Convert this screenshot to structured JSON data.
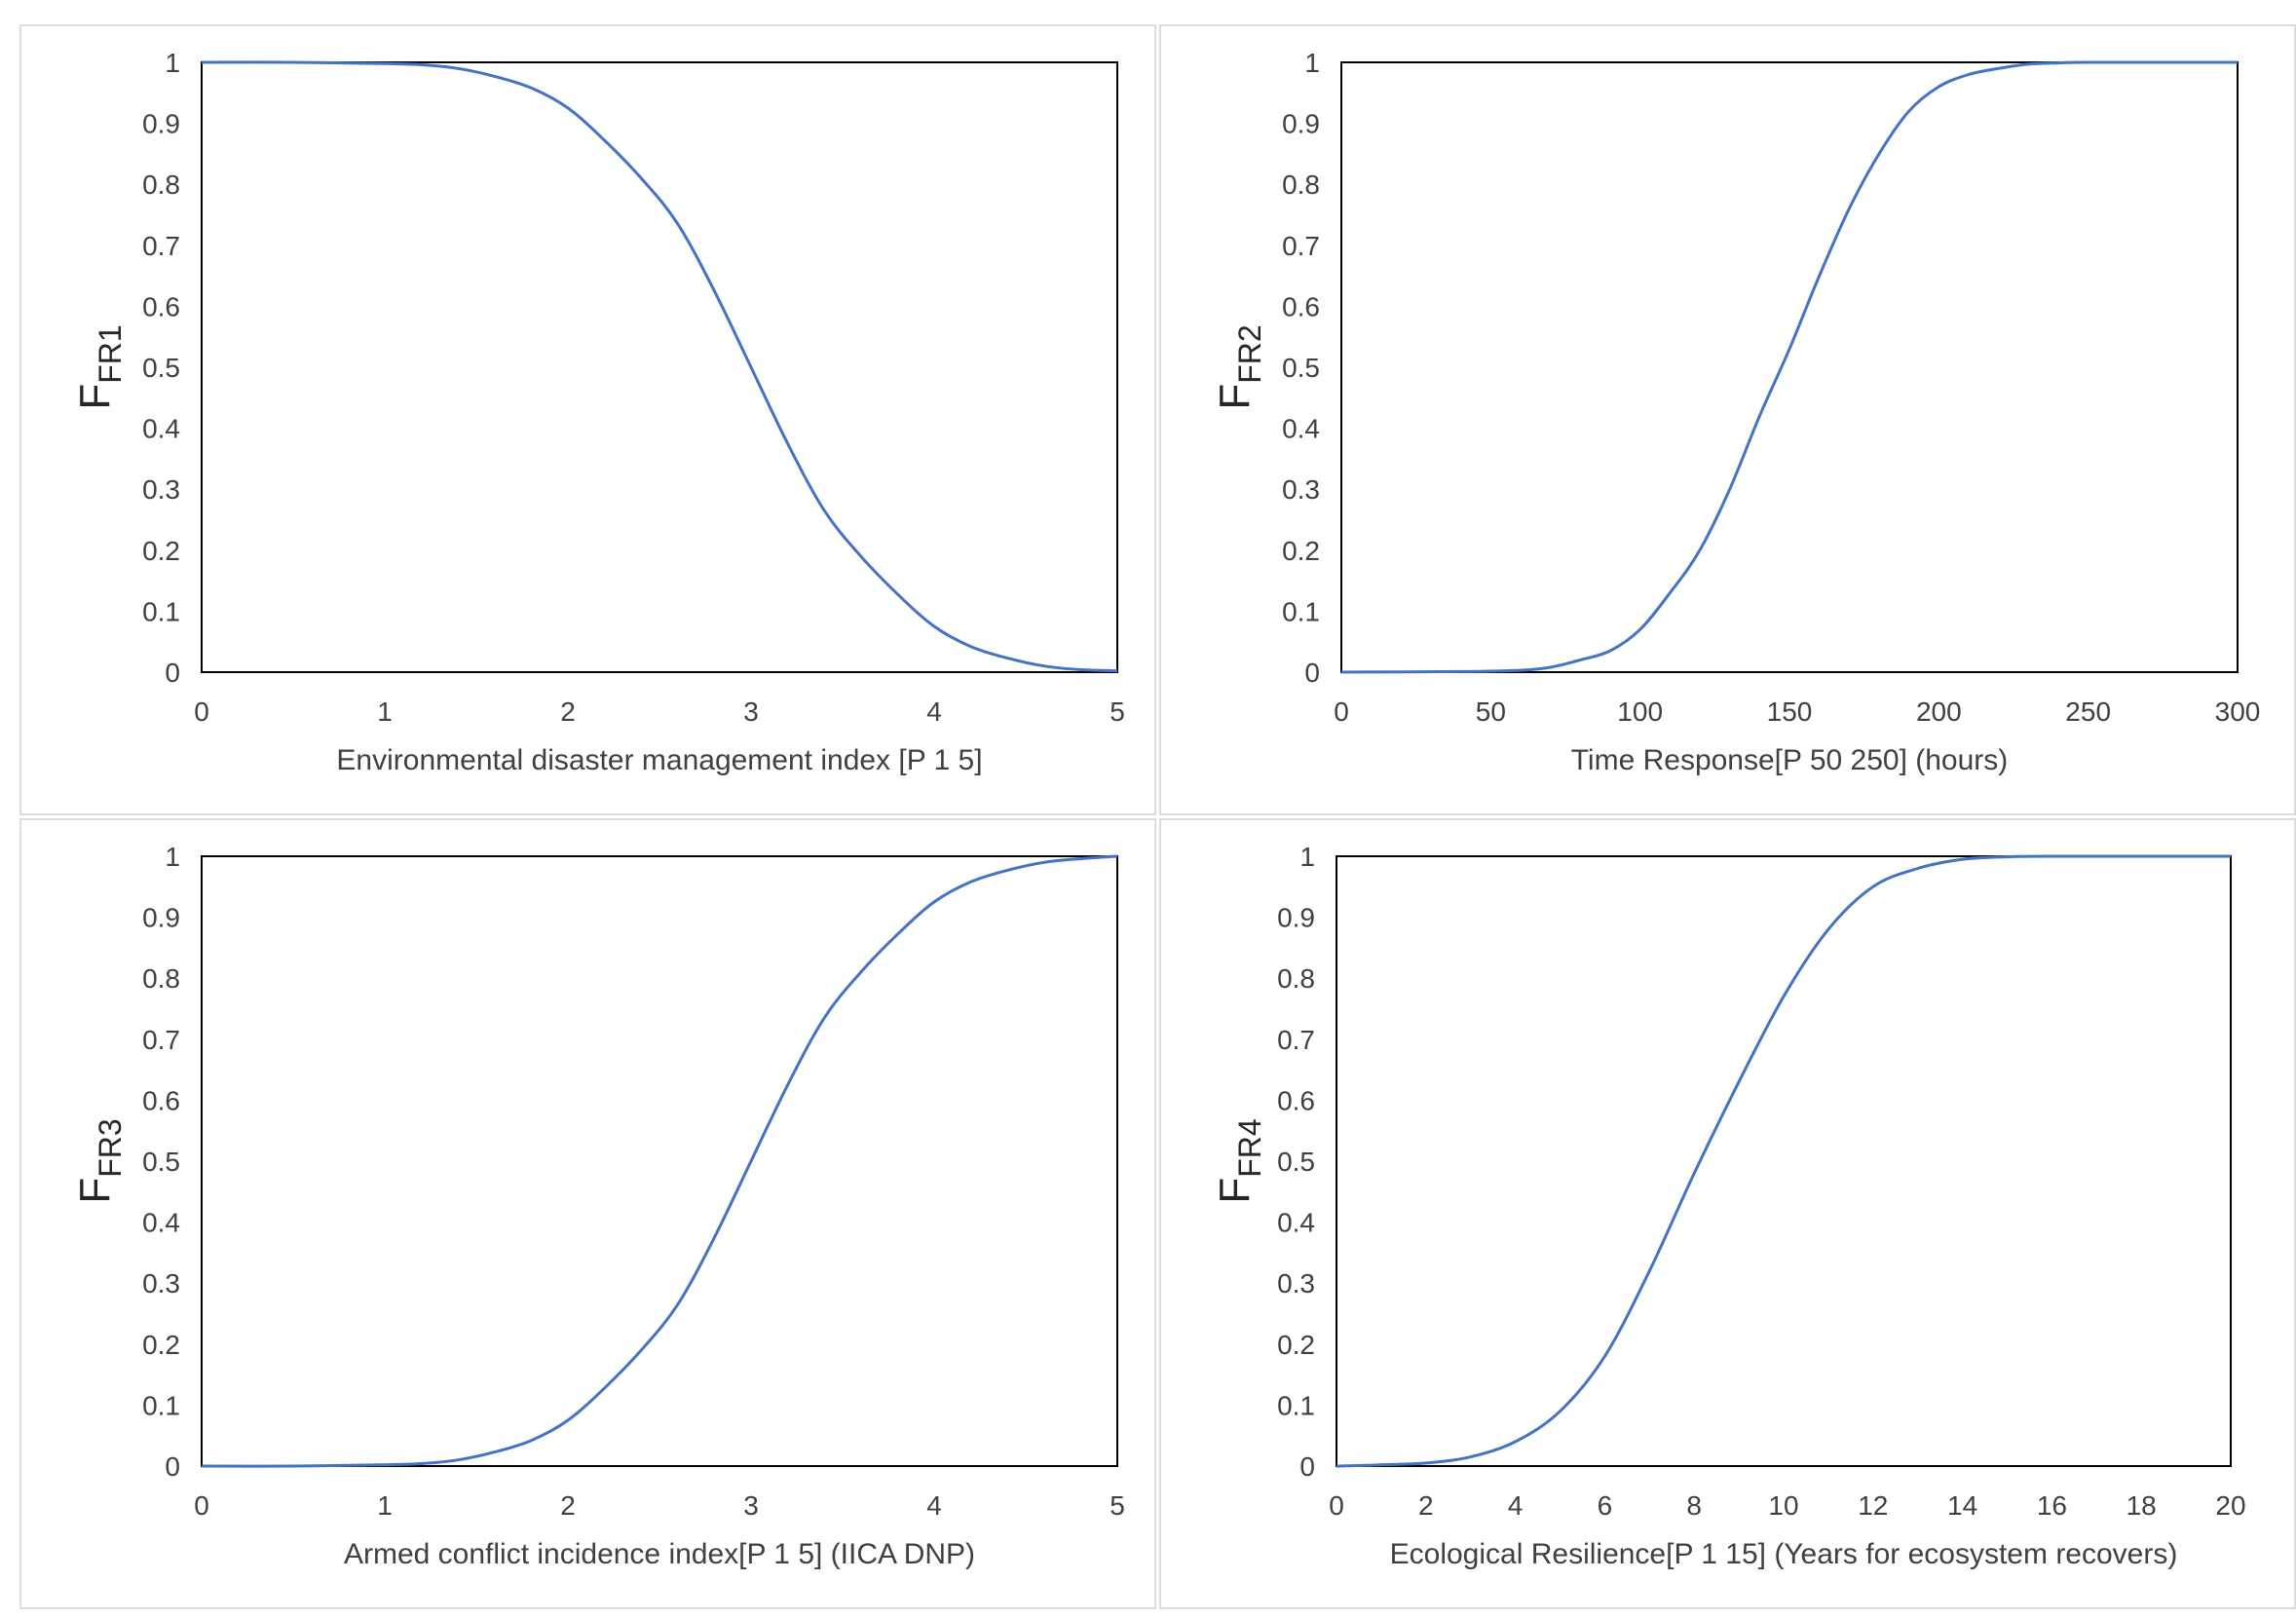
{
  "chart_data": [
    {
      "type": "line",
      "ylabel_main": "F",
      "ylabel_sub": "FR1",
      "xlabel": "Environmental disaster management index [P 1 5]",
      "xlim": [
        0,
        5
      ],
      "ylim": [
        0,
        1
      ],
      "xticks": [
        0,
        1,
        2,
        3,
        4,
        5
      ],
      "yticks": [
        0,
        0.1,
        0.2,
        0.3,
        0.4,
        0.5,
        0.6,
        0.7,
        0.8,
        0.9,
        1
      ],
      "ytick_labels": [
        "0",
        "0.1",
        "0.2",
        "0.3",
        "0.4",
        "0.5",
        "0.6",
        "0.7",
        "0.8",
        "0.9",
        "1"
      ],
      "series_color": "#4472c4",
      "x": [
        0,
        0.5,
        1.0,
        1.2,
        1.4,
        1.6,
        1.8,
        2.0,
        2.2,
        2.4,
        2.6,
        2.8,
        3.0,
        3.2,
        3.4,
        3.6,
        3.8,
        4.0,
        4.2,
        4.4,
        4.6,
        4.8,
        5.0
      ],
      "y": [
        1,
        1,
        0.998,
        0.996,
        0.99,
        0.977,
        0.958,
        0.925,
        0.872,
        0.81,
        0.735,
        0.625,
        0.5,
        0.375,
        0.265,
        0.19,
        0.128,
        0.075,
        0.042,
        0.023,
        0.01,
        0.004,
        0.002
      ]
    },
    {
      "type": "line",
      "ylabel_main": "F",
      "ylabel_sub": "FR2",
      "xlabel": "Time Response[P 50 250] (hours)",
      "xlim": [
        0,
        300
      ],
      "ylim": [
        0,
        1
      ],
      "xticks": [
        0,
        50,
        100,
        150,
        200,
        250,
        300
      ],
      "yticks": [
        0,
        0.1,
        0.2,
        0.3,
        0.4,
        0.5,
        0.6,
        0.7,
        0.8,
        0.9,
        1
      ],
      "ytick_labels": [
        "0",
        "0.1",
        "0.2",
        "0.3",
        "0.4",
        "0.5",
        "0.6",
        "0.7",
        "0.8",
        "0.9",
        "1"
      ],
      "series_color": "#4472c4",
      "x": [
        0,
        40,
        60,
        70,
        80,
        90,
        100,
        110,
        120,
        130,
        140,
        150,
        160,
        170,
        180,
        190,
        200,
        210,
        220,
        230,
        240,
        250,
        300
      ],
      "y": [
        0,
        0.001,
        0.003,
        0.008,
        0.02,
        0.035,
        0.07,
        0.13,
        0.2,
        0.3,
        0.42,
        0.53,
        0.65,
        0.76,
        0.85,
        0.92,
        0.96,
        0.98,
        0.99,
        0.997,
        0.999,
        1,
        1
      ]
    },
    {
      "type": "line",
      "ylabel_main": "F",
      "ylabel_sub": "FR3",
      "xlabel": "Armed conflict incidence index[P 1 5] (IICA DNP)",
      "xlim": [
        0,
        5
      ],
      "ylim": [
        0,
        1
      ],
      "xticks": [
        0,
        1,
        2,
        3,
        4,
        5
      ],
      "yticks": [
        0,
        0.1,
        0.2,
        0.3,
        0.4,
        0.5,
        0.6,
        0.7,
        0.8,
        0.9,
        1
      ],
      "ytick_labels": [
        "0",
        "0.1",
        "0.2",
        "0.3",
        "0.4",
        "0.5",
        "0.6",
        "0.7",
        "0.8",
        "0.9",
        "1"
      ],
      "series_color": "#4472c4",
      "x": [
        0,
        0.5,
        1.0,
        1.2,
        1.4,
        1.6,
        1.8,
        2.0,
        2.2,
        2.4,
        2.6,
        2.8,
        3.0,
        3.2,
        3.4,
        3.6,
        3.8,
        4.0,
        4.2,
        4.4,
        4.6,
        4.8,
        5.0
      ],
      "y": [
        0,
        0,
        0.002,
        0.004,
        0.01,
        0.023,
        0.042,
        0.075,
        0.128,
        0.19,
        0.265,
        0.375,
        0.5,
        0.625,
        0.735,
        0.81,
        0.872,
        0.925,
        0.958,
        0.977,
        0.99,
        0.996,
        1
      ]
    },
    {
      "type": "line",
      "ylabel_main": "F",
      "ylabel_sub": "FR4",
      "xlabel": "Ecological Resilience[P 1 15] (Years for ecosystem recovers)",
      "xlim": [
        0,
        20
      ],
      "ylim": [
        0,
        1
      ],
      "xticks": [
        0,
        2,
        4,
        6,
        8,
        10,
        12,
        14,
        16,
        18,
        20
      ],
      "yticks": [
        0,
        0.1,
        0.2,
        0.3,
        0.4,
        0.5,
        0.6,
        0.7,
        0.8,
        0.9,
        1
      ],
      "ytick_labels": [
        "0",
        "0.1",
        "0.2",
        "0.3",
        "0.4",
        "0.5",
        "0.6",
        "0.7",
        "0.8",
        "0.9",
        "1"
      ],
      "series_color": "#4472c4",
      "x": [
        0,
        1,
        2,
        3,
        4,
        5,
        6,
        7,
        8,
        9,
        10,
        11,
        12,
        13,
        14,
        15,
        16,
        20
      ],
      "y": [
        0,
        0.002,
        0.005,
        0.015,
        0.04,
        0.09,
        0.18,
        0.32,
        0.48,
        0.63,
        0.77,
        0.88,
        0.95,
        0.98,
        0.995,
        0.999,
        1,
        1
      ]
    }
  ]
}
